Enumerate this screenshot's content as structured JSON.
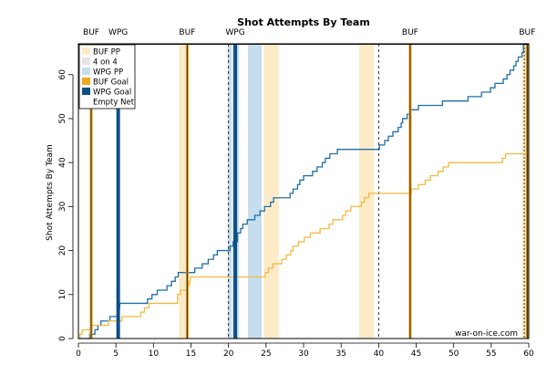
{
  "chart_data": {
    "type": "line",
    "title": "Shot Attempts By Team",
    "xlabel": "",
    "ylabel": "Shot Attempts By Team",
    "xlim": [
      0,
      60
    ],
    "ylim": [
      0,
      67
    ],
    "x_ticks": [
      0,
      5,
      10,
      15,
      20,
      25,
      30,
      35,
      40,
      45,
      50,
      55,
      60
    ],
    "y_ticks": [
      0,
      10,
      20,
      30,
      40,
      50,
      60
    ],
    "period_breaks": [
      0,
      20,
      40,
      60
    ],
    "colors": {
      "buf": "#F4B942",
      "wpg": "#1F6FA8",
      "buf_pp": "#FDEBC8",
      "four_on_four": "#E6E6E6",
      "wpg_pp": "#C6DDEE",
      "buf_goal": "#F0A81E",
      "wpg_goal": "#0E4F86"
    },
    "legend": {
      "position": "top-left",
      "items": [
        {
          "label": "BUF PP",
          "color": "#FDEBC8",
          "kind": "fill"
        },
        {
          "label": "4 on 4",
          "color": "#E6E6E6",
          "kind": "fill"
        },
        {
          "label": "WPG PP",
          "color": "#C6DDEE",
          "kind": "fill"
        },
        {
          "label": "BUF Goal",
          "color": "#F0A81E",
          "kind": "fill"
        },
        {
          "label": "WPG Goal",
          "color": "#0E4F86",
          "kind": "fill"
        },
        {
          "label": "Empty Net",
          "color": "#000000",
          "kind": "none"
        }
      ]
    },
    "shaded_regions": [
      {
        "type": "BUF PP",
        "start": 13.4,
        "end": 14.6
      },
      {
        "type": "WPG PP",
        "start": 19.9,
        "end": 20.4
      },
      {
        "type": "WPG PP",
        "start": 20.5,
        "end": 21.4
      },
      {
        "type": "WPG PP",
        "start": 22.6,
        "end": 24.4
      },
      {
        "type": "BUF PP",
        "start": 24.7,
        "end": 26.7
      },
      {
        "type": "BUF PP",
        "start": 37.4,
        "end": 39.4
      },
      {
        "type": "BUF PP",
        "start": 59.1,
        "end": 60.0
      }
    ],
    "goals": [
      {
        "team": "BUF",
        "label": "BUF",
        "time": 1.7
      },
      {
        "team": "WPG",
        "label": "WPG",
        "time": 5.3
      },
      {
        "team": "BUF",
        "label": "BUF",
        "time": 14.5
      },
      {
        "team": "WPG",
        "label": "WPG",
        "time": 20.9
      },
      {
        "team": "BUF",
        "label": "BUF",
        "time": 44.2
      },
      {
        "team": "BUF",
        "label": "BUF",
        "time": 59.8
      }
    ],
    "empty_net_lines": [
      59.4,
      60.0
    ],
    "series": [
      {
        "name": "WPG",
        "color": "#1F6FA8",
        "points": [
          [
            0,
            0
          ],
          [
            1.5,
            1
          ],
          [
            2.2,
            2
          ],
          [
            2.6,
            3
          ],
          [
            3.0,
            4
          ],
          [
            4.2,
            5
          ],
          [
            5.3,
            7
          ],
          [
            5.5,
            8
          ],
          [
            9.2,
            9
          ],
          [
            9.8,
            10
          ],
          [
            10.5,
            11
          ],
          [
            11.8,
            12
          ],
          [
            12.4,
            13
          ],
          [
            12.9,
            14
          ],
          [
            13.3,
            15
          ],
          [
            15.5,
            16
          ],
          [
            16.5,
            17
          ],
          [
            17.3,
            18
          ],
          [
            18.0,
            19
          ],
          [
            18.5,
            20
          ],
          [
            20.2,
            21
          ],
          [
            20.6,
            22
          ],
          [
            21.2,
            24
          ],
          [
            21.6,
            25
          ],
          [
            21.9,
            26
          ],
          [
            22.5,
            27
          ],
          [
            23.5,
            28
          ],
          [
            24.2,
            29
          ],
          [
            24.8,
            30
          ],
          [
            25.6,
            31
          ],
          [
            26.0,
            32
          ],
          [
            28.2,
            33
          ],
          [
            28.6,
            34
          ],
          [
            29.2,
            35
          ],
          [
            29.5,
            36
          ],
          [
            30.0,
            37
          ],
          [
            31.2,
            38
          ],
          [
            31.8,
            39
          ],
          [
            32.5,
            40
          ],
          [
            32.9,
            41
          ],
          [
            33.5,
            42
          ],
          [
            34.5,
            43
          ],
          [
            40.1,
            44
          ],
          [
            40.8,
            45
          ],
          [
            41.3,
            46
          ],
          [
            41.9,
            47
          ],
          [
            42.6,
            48
          ],
          [
            43.0,
            49
          ],
          [
            43.2,
            50
          ],
          [
            43.8,
            51
          ],
          [
            44.3,
            52
          ],
          [
            45.3,
            53
          ],
          [
            48.5,
            54
          ],
          [
            51.9,
            55
          ],
          [
            53.7,
            56
          ],
          [
            54.9,
            57
          ],
          [
            55.5,
            58
          ],
          [
            56.6,
            59
          ],
          [
            57.1,
            60
          ],
          [
            57.5,
            61
          ],
          [
            58.0,
            62
          ],
          [
            58.3,
            63
          ],
          [
            58.6,
            64
          ],
          [
            59.1,
            65
          ],
          [
            59.3,
            67
          ],
          [
            60,
            67
          ]
        ]
      },
      {
        "name": "BUF",
        "color": "#F4B942",
        "points": [
          [
            0,
            0
          ],
          [
            0.2,
            1
          ],
          [
            0.5,
            2
          ],
          [
            1.7,
            3
          ],
          [
            4.0,
            4
          ],
          [
            5.8,
            5
          ],
          [
            8.3,
            6
          ],
          [
            8.8,
            7
          ],
          [
            9.4,
            8
          ],
          [
            13.2,
            10
          ],
          [
            13.6,
            11
          ],
          [
            14.4,
            12
          ],
          [
            14.8,
            13
          ],
          [
            14.9,
            14
          ],
          [
            24.9,
            15
          ],
          [
            25.3,
            16
          ],
          [
            25.9,
            17
          ],
          [
            27.1,
            18
          ],
          [
            27.7,
            19
          ],
          [
            28.3,
            20
          ],
          [
            28.6,
            21
          ],
          [
            29.3,
            22
          ],
          [
            30.1,
            23
          ],
          [
            30.9,
            24
          ],
          [
            32.2,
            25
          ],
          [
            33.4,
            26
          ],
          [
            33.9,
            27
          ],
          [
            35.2,
            28
          ],
          [
            35.6,
            29
          ],
          [
            36.3,
            30
          ],
          [
            37.7,
            31
          ],
          [
            38.1,
            32
          ],
          [
            38.7,
            33
          ],
          [
            44.4,
            34
          ],
          [
            45.3,
            35
          ],
          [
            46.2,
            36
          ],
          [
            46.9,
            37
          ],
          [
            47.9,
            38
          ],
          [
            48.6,
            39
          ],
          [
            49.3,
            40
          ],
          [
            56.5,
            41
          ],
          [
            56.9,
            42
          ],
          [
            60,
            42
          ]
        ]
      }
    ],
    "watermark": "war-on-ice.com"
  }
}
